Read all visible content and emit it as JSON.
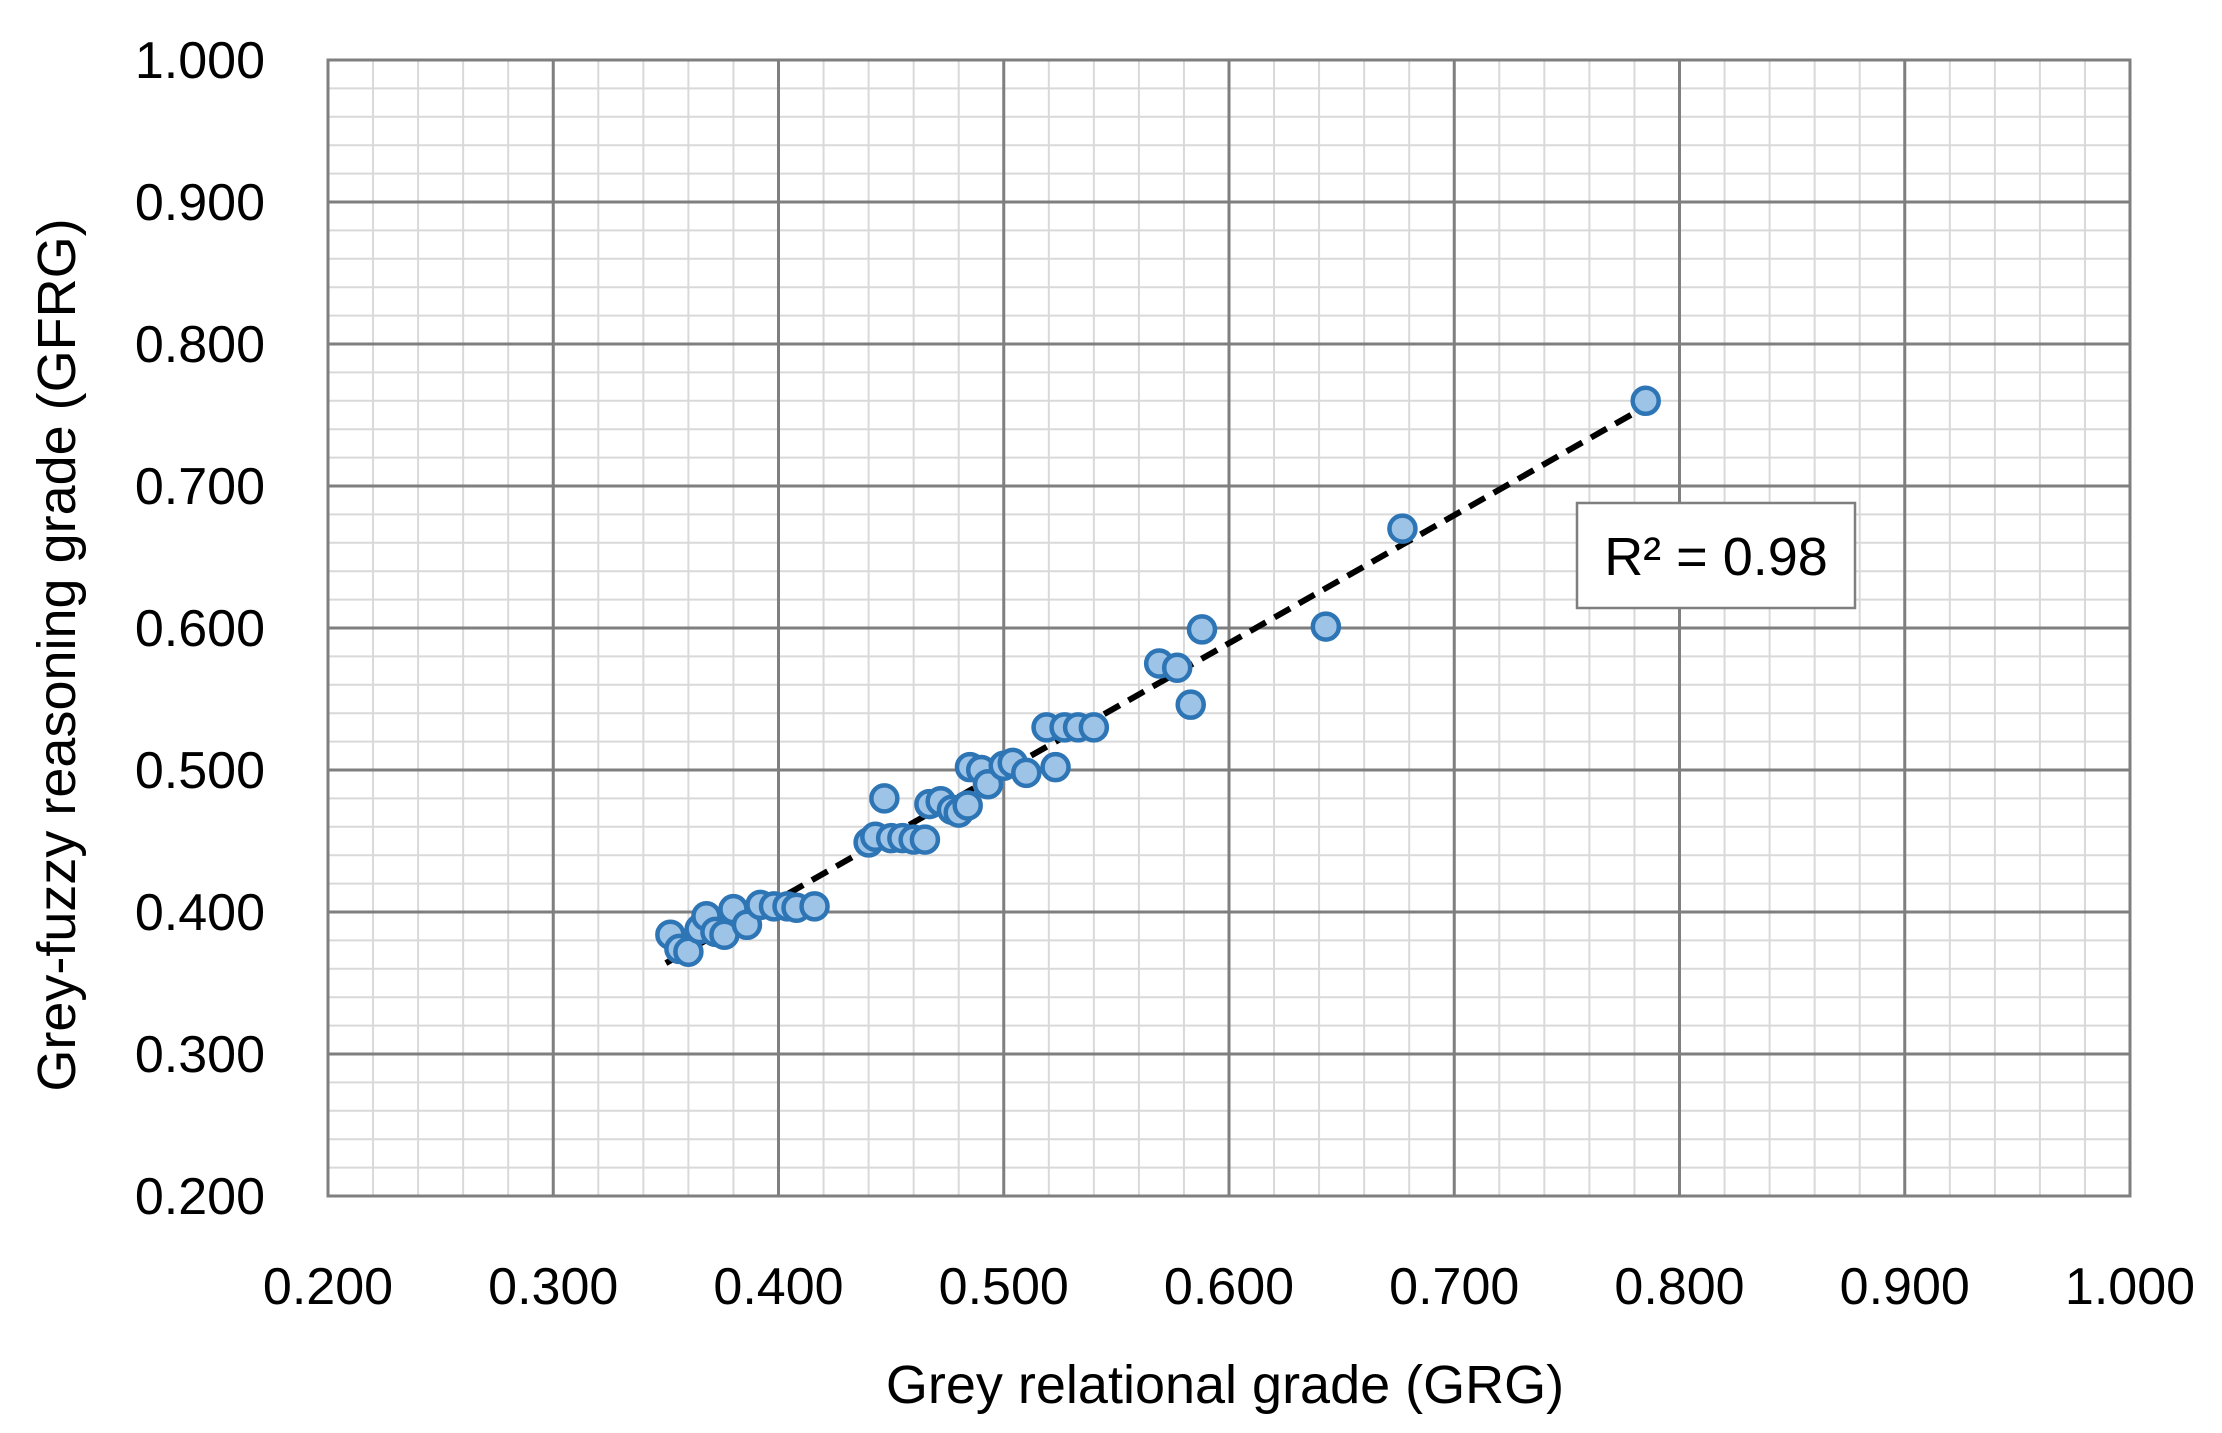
{
  "chart_data": {
    "type": "scatter",
    "xlabel": "Grey relational grade (GRG)",
    "ylabel": "Grey-fuzzy reasoning grade (GFRG)",
    "xlim": [
      0.2,
      1.0
    ],
    "ylim": [
      0.2,
      1.0
    ],
    "x_ticks": [
      "0.200",
      "0.300",
      "0.400",
      "0.500",
      "0.600",
      "0.700",
      "0.800",
      "0.900",
      "1.000"
    ],
    "y_ticks": [
      "0.200",
      "0.300",
      "0.400",
      "0.500",
      "0.600",
      "0.700",
      "0.800",
      "0.900",
      "1.000"
    ],
    "grid": "major and minor",
    "marker_fill": "#9dc3e6",
    "marker_edge": "#2e75b6",
    "trendline": {
      "style": "dashed",
      "color": "#000000",
      "x": [
        0.35,
        0.785
      ],
      "y": [
        0.364,
        0.756
      ]
    },
    "annotation": {
      "text": "R² = 0.98",
      "placement": "right of trendline"
    },
    "points": [
      {
        "x": 0.352,
        "y": 0.384
      },
      {
        "x": 0.356,
        "y": 0.374
      },
      {
        "x": 0.36,
        "y": 0.372
      },
      {
        "x": 0.365,
        "y": 0.388
      },
      {
        "x": 0.368,
        "y": 0.397
      },
      {
        "x": 0.372,
        "y": 0.386
      },
      {
        "x": 0.376,
        "y": 0.384
      },
      {
        "x": 0.38,
        "y": 0.402
      },
      {
        "x": 0.386,
        "y": 0.391
      },
      {
        "x": 0.392,
        "y": 0.405
      },
      {
        "x": 0.398,
        "y": 0.404
      },
      {
        "x": 0.404,
        "y": 0.404
      },
      {
        "x": 0.408,
        "y": 0.403
      },
      {
        "x": 0.416,
        "y": 0.404
      },
      {
        "x": 0.44,
        "y": 0.449
      },
      {
        "x": 0.443,
        "y": 0.453
      },
      {
        "x": 0.447,
        "y": 0.48
      },
      {
        "x": 0.45,
        "y": 0.452
      },
      {
        "x": 0.455,
        "y": 0.452
      },
      {
        "x": 0.46,
        "y": 0.451
      },
      {
        "x": 0.465,
        "y": 0.451
      },
      {
        "x": 0.467,
        "y": 0.476
      },
      {
        "x": 0.472,
        "y": 0.478
      },
      {
        "x": 0.477,
        "y": 0.472
      },
      {
        "x": 0.48,
        "y": 0.47
      },
      {
        "x": 0.484,
        "y": 0.475
      },
      {
        "x": 0.485,
        "y": 0.502
      },
      {
        "x": 0.49,
        "y": 0.5
      },
      {
        "x": 0.493,
        "y": 0.49
      },
      {
        "x": 0.5,
        "y": 0.503
      },
      {
        "x": 0.504,
        "y": 0.505
      },
      {
        "x": 0.51,
        "y": 0.498
      },
      {
        "x": 0.519,
        "y": 0.53
      },
      {
        "x": 0.523,
        "y": 0.502
      },
      {
        "x": 0.527,
        "y": 0.53
      },
      {
        "x": 0.533,
        "y": 0.53
      },
      {
        "x": 0.54,
        "y": 0.53
      },
      {
        "x": 0.569,
        "y": 0.575
      },
      {
        "x": 0.577,
        "y": 0.572
      },
      {
        "x": 0.583,
        "y": 0.546
      },
      {
        "x": 0.588,
        "y": 0.599
      },
      {
        "x": 0.643,
        "y": 0.601
      },
      {
        "x": 0.677,
        "y": 0.67
      },
      {
        "x": 0.785,
        "y": 0.76
      }
    ]
  }
}
